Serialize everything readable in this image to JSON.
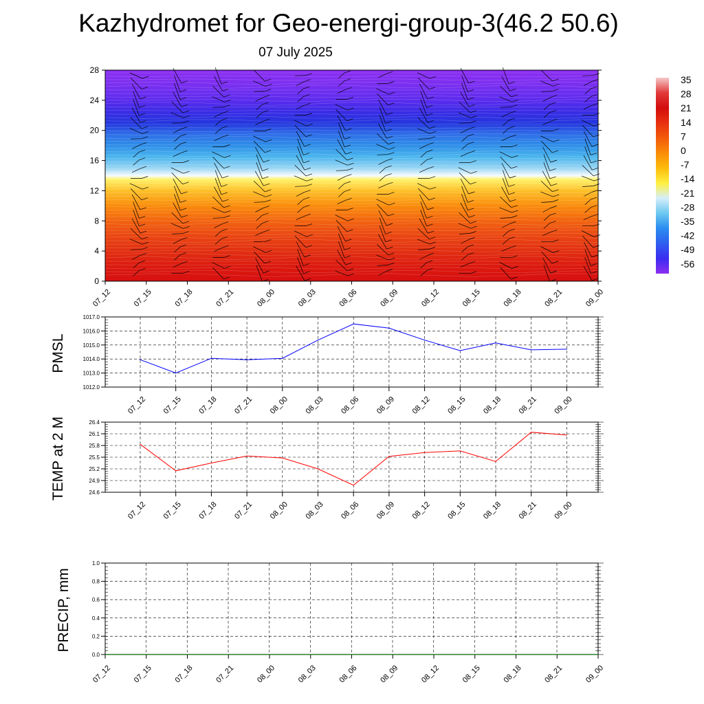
{
  "header": {
    "title": "Kazhydromet for Geo-energi-group-3(46.2 50.6)",
    "subtitle": "07 July 2025"
  },
  "colors": {
    "pmsl_line": "#0000ff",
    "temp_line": "#ff0000",
    "precip_line": "#006400",
    "cross_section_top": "#8b2ff0",
    "cross_section_bottom": "#d81010"
  },
  "chart_data": [
    {
      "type": "heatmap",
      "title": "",
      "xlabel": "",
      "ylabel": "",
      "x_tick_labels": [
        "07_12",
        "07_15",
        "07_18",
        "07_21",
        "08_00",
        "08_03",
        "08_06",
        "08_09",
        "08_12",
        "08_15",
        "08_18",
        "08_21",
        "09_00"
      ],
      "y_ticks": [
        "0",
        "4",
        "8",
        "12",
        "16",
        "20",
        "24",
        "28"
      ],
      "ylim": [
        0,
        28
      ],
      "overlay": "wind barbs",
      "colorbar_labels": [
        "35",
        "28",
        "21",
        "14",
        "7",
        "0",
        "-7",
        "-14",
        "-21",
        "-28",
        "-35",
        "-42",
        "-49",
        "-56"
      ],
      "colorbar_colors": [
        "#f5c8c8",
        "#e23a3a",
        "#d40d0d",
        "#e83010",
        "#f25a0a",
        "#fa8c08",
        "#fcbc0c",
        "#fff040",
        "#d4eefa",
        "#6cc8f0",
        "#2a8cf0",
        "#2f5ef0",
        "#3b2cf0",
        "#8e2ff0"
      ],
      "layers": [
        {
          "height": 0,
          "color": "#d61010"
        },
        {
          "height": 2,
          "color": "#dc1a10"
        },
        {
          "height": 4,
          "color": "#e23012"
        },
        {
          "height": 6,
          "color": "#ea4612"
        },
        {
          "height": 8,
          "color": "#f26410"
        },
        {
          "height": 10,
          "color": "#fa8c0c"
        },
        {
          "height": 12,
          "color": "#fdc02a"
        },
        {
          "height": 13.5,
          "color": "#fff26a"
        },
        {
          "height": 14,
          "color": "#f5fbff"
        },
        {
          "height": 15,
          "color": "#9ad6f4"
        },
        {
          "height": 16.5,
          "color": "#4cb6ee"
        },
        {
          "height": 18,
          "color": "#2f8ee8"
        },
        {
          "height": 19.5,
          "color": "#2f6ee8"
        },
        {
          "height": 21,
          "color": "#2536de"
        },
        {
          "height": 22.5,
          "color": "#3a2ce6"
        },
        {
          "height": 24,
          "color": "#5c2cee"
        },
        {
          "height": 26,
          "color": "#7a2ff0"
        },
        {
          "height": 28,
          "color": "#8c2ff2"
        }
      ]
    },
    {
      "type": "line",
      "title": "",
      "ylabel": "PMSL",
      "xlabel": "",
      "ylim": [
        1012.0,
        1017.0
      ],
      "y_ticks": [
        "1012.0",
        "1013.0",
        "1014.0",
        "1015.0",
        "1016.0",
        "1017.0"
      ],
      "categories": [
        "07_12",
        "07_15",
        "07_18",
        "07_21",
        "08_00",
        "08_03",
        "08_06",
        "08_09",
        "08_12",
        "08_15",
        "08_18",
        "08_21",
        "09_00"
      ],
      "series": [
        {
          "values": [
            1013.95,
            1013.0,
            1014.05,
            1013.95,
            1014.05,
            1015.35,
            1016.5,
            1016.2,
            1015.35,
            1014.6,
            1015.15,
            1014.65,
            1014.7
          ]
        }
      ],
      "grid": true
    },
    {
      "type": "line",
      "title": "",
      "ylabel": "TEMP at 2 M",
      "xlabel": "",
      "ylim": [
        24.6,
        26.4
      ],
      "y_ticks": [
        "24.6",
        "24.9",
        "25.2",
        "25.5",
        "25.8",
        "26.1",
        "26.4"
      ],
      "categories": [
        "07_12",
        "07_15",
        "07_18",
        "07_21",
        "08_00",
        "08_03",
        "08_06",
        "08_09",
        "08_12",
        "08_15",
        "08_18",
        "08_21",
        "09_00"
      ],
      "series": [
        {
          "values": [
            25.83,
            25.15,
            25.35,
            25.53,
            25.48,
            25.2,
            24.78,
            25.52,
            25.62,
            25.66,
            25.39,
            26.14,
            26.07
          ]
        }
      ],
      "grid": true
    },
    {
      "type": "line",
      "title": "",
      "ylabel": "PRECIP, mm",
      "xlabel": "",
      "ylim": [
        0.0,
        1.0
      ],
      "y_ticks": [
        "0.0",
        "0.2",
        "0.4",
        "0.6",
        "0.8",
        "1.0"
      ],
      "categories": [
        "07_12",
        "07_15",
        "07_18",
        "07_21",
        "08_00",
        "08_03",
        "08_06",
        "08_09",
        "08_12",
        "08_15",
        "08_18",
        "08_21",
        "09_00"
      ],
      "series": [
        {
          "values": [
            0,
            0,
            0,
            0,
            0,
            0,
            0,
            0,
            0,
            0,
            0,
            0,
            0
          ]
        }
      ],
      "grid": true
    }
  ]
}
